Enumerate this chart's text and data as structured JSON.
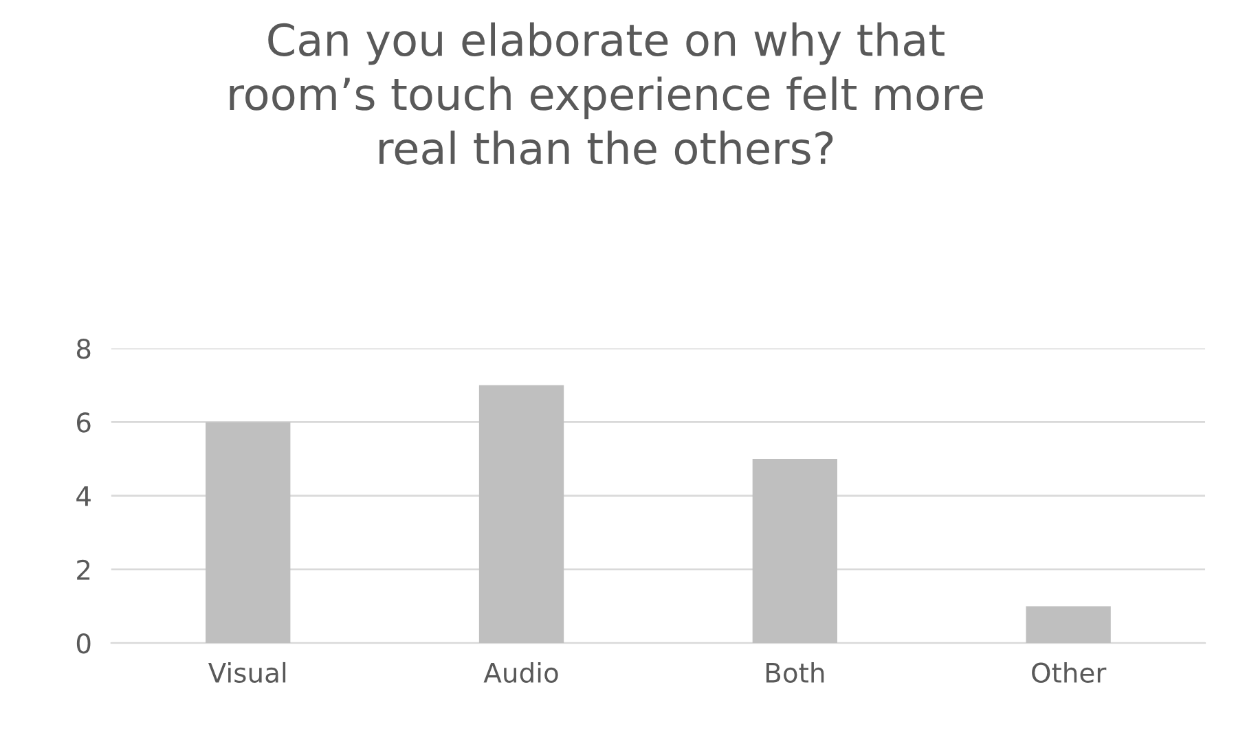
{
  "chart_data": {
    "type": "bar",
    "title": "Can you elaborate on why that\nroom’s touch experience felt more\nreal than the others?",
    "categories": [
      "Visual",
      "Audio",
      "Both",
      "Other"
    ],
    "values": [
      6,
      7,
      5,
      1
    ],
    "color": "#bfbfbf",
    "ylim": [
      0,
      8
    ],
    "yticks": [
      0,
      2,
      4,
      6,
      8
    ],
    "grid": "y",
    "legend": false
  }
}
